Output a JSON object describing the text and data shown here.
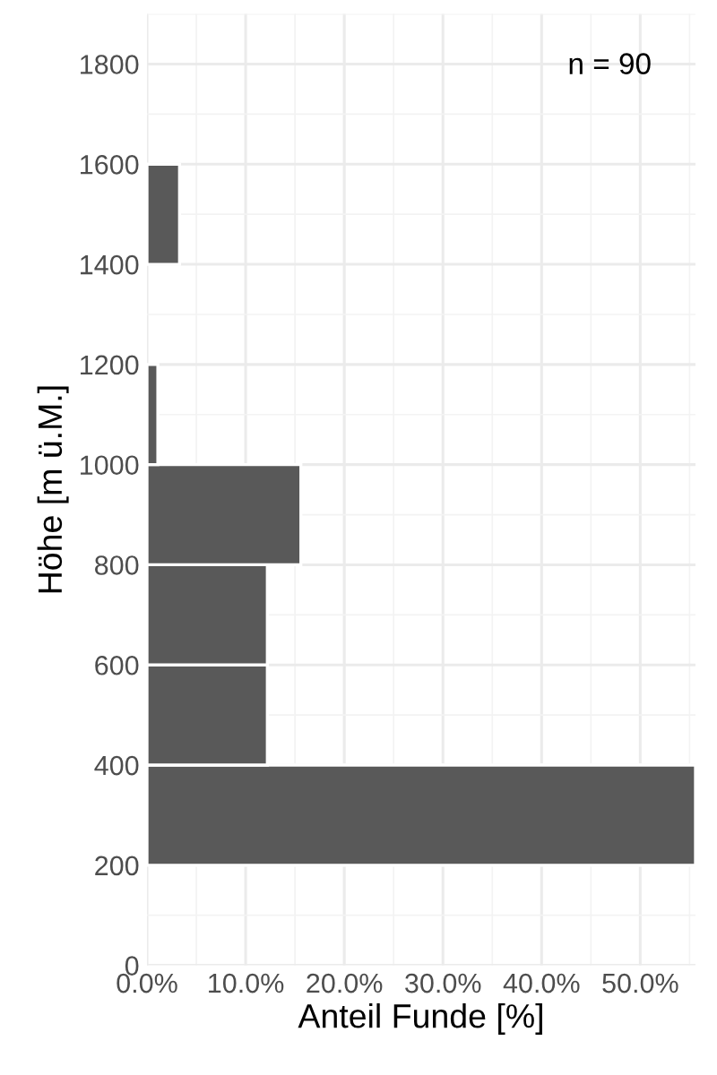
{
  "chart_data": {
    "type": "histogram",
    "orientation": "horizontal",
    "bins": [
      200,
      400,
      600,
      800,
      1000,
      1200,
      1400,
      1600
    ],
    "values": [
      55.6,
      12.2,
      12.2,
      15.6,
      1.1,
      0,
      3.3
    ],
    "color": "#595959",
    "xlabel": "Anteil Funde [%]",
    "ylabel": "Höhe [m ü.M.]",
    "annotations": [
      "n = 90"
    ],
    "xlim": [
      0,
      55.6
    ],
    "ylim": [
      0,
      1900
    ],
    "xticks": [
      {
        "value": 0,
        "label": "0.0%"
      },
      {
        "value": 10,
        "label": "10.0%"
      },
      {
        "value": 20,
        "label": "20.0%"
      },
      {
        "value": 30,
        "label": "30.0%"
      },
      {
        "value": 40,
        "label": "40.0%"
      },
      {
        "value": 50,
        "label": "50.0%"
      }
    ],
    "yticks": [
      0,
      200,
      400,
      600,
      800,
      1000,
      1200,
      1400,
      1600,
      1800
    ],
    "grid": true
  }
}
